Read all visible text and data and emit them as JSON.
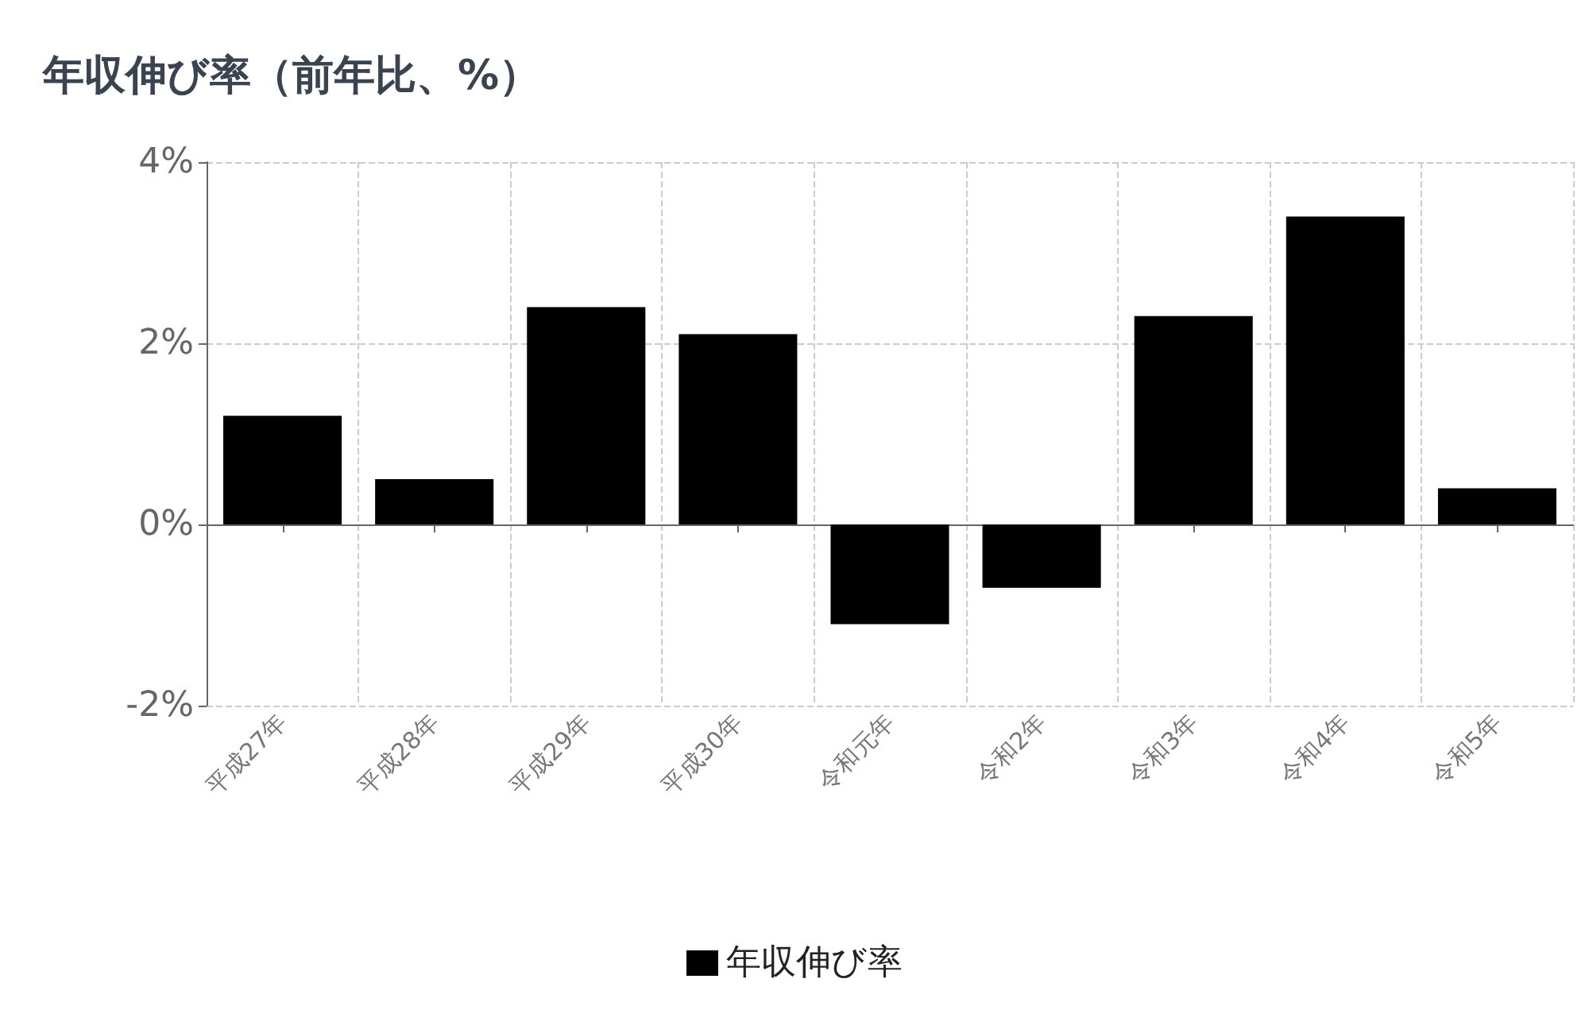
{
  "chart_data": {
    "type": "bar",
    "title": "年収伸び率（前年比、%）",
    "categories": [
      "平成27年",
      "平成28年",
      "平成29年",
      "平成30年",
      "令和元年",
      "令和2年",
      "令和3年",
      "令和4年",
      "令和5年"
    ],
    "series": [
      {
        "name": "年収伸び率",
        "color": "#000000",
        "values": [
          1.2,
          0.5,
          2.4,
          2.1,
          -1.1,
          -0.7,
          2.3,
          3.4,
          0.4
        ]
      }
    ],
    "ylim": [
      -2,
      4
    ],
    "yticks": [
      {
        "value": -2,
        "label": "-2%"
      },
      {
        "value": 0,
        "label": "0%"
      },
      {
        "value": 2,
        "label": "2%"
      },
      {
        "value": 4,
        "label": "4%"
      }
    ],
    "grid": true,
    "legend": "bottom"
  }
}
